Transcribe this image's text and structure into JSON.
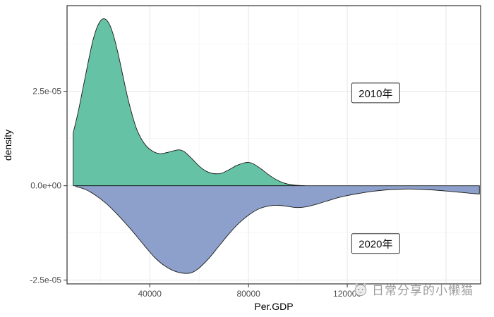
{
  "chart_data": {
    "type": "area",
    "title": "",
    "xlabel": "Per.GDP",
    "ylabel": "density",
    "xlim": [
      6500,
      174000
    ],
    "ylim": [
      -2.6e-05,
      4.77e-05
    ],
    "grid": {
      "major_color": "#e7e7e7",
      "minor_color": "#f3f3f3",
      "panel_border": "#333333"
    },
    "x_ticks": [
      {
        "value": 40000,
        "label": "40000"
      },
      {
        "value": 80000,
        "label": "80000"
      },
      {
        "value": 120000,
        "label": "120000"
      }
    ],
    "x_grid_extra": [
      160000
    ],
    "x_minor": [
      20000,
      60000,
      100000,
      140000
    ],
    "y_ticks": [
      {
        "value": 2.5e-05,
        "label": "2.5e-05"
      },
      {
        "value": 0,
        "label": "0.0e+00"
      },
      {
        "value": -2.5e-05,
        "label": "-2.5e-05"
      }
    ],
    "y_minor": [
      -1.25e-05,
      1.25e-05,
      3.75e-05
    ],
    "series": [
      {
        "name": "2010年",
        "color": "#66C2A5",
        "outline": "#1a1a1a",
        "points": [
          [
            9000,
            1.4e-05
          ],
          [
            11000,
            1.95e-05
          ],
          [
            13000,
            2.6e-05
          ],
          [
            15000,
            3.25e-05
          ],
          [
            17000,
            3.85e-05
          ],
          [
            19000,
            4.25e-05
          ],
          [
            21000,
            4.42e-05
          ],
          [
            23000,
            4.35e-05
          ],
          [
            25000,
            4.05e-05
          ],
          [
            27000,
            3.55e-05
          ],
          [
            29000,
            2.95e-05
          ],
          [
            31000,
            2.35e-05
          ],
          [
            33000,
            1.85e-05
          ],
          [
            35000,
            1.45e-05
          ],
          [
            38000,
            1.1e-05
          ],
          [
            41000,
            9.2e-06
          ],
          [
            44000,
            8.5e-06
          ],
          [
            47000,
            8.8e-06
          ],
          [
            50000,
            9.3e-06
          ],
          [
            52000,
            9.5e-06
          ],
          [
            54000,
            9e-06
          ],
          [
            57000,
            7.2e-06
          ],
          [
            60000,
            5.2e-06
          ],
          [
            63000,
            3.8e-06
          ],
          [
            66000,
            3.2e-06
          ],
          [
            69000,
            3.3e-06
          ],
          [
            72000,
            4.2e-06
          ],
          [
            75000,
            5.3e-06
          ],
          [
            78000,
            6e-06
          ],
          [
            80000,
            6.2e-06
          ],
          [
            82000,
            5.8e-06
          ],
          [
            85000,
            4.5e-06
          ],
          [
            88000,
            3e-06
          ],
          [
            91000,
            1.7e-06
          ],
          [
            94000,
            8e-07
          ],
          [
            97000,
            3e-07
          ],
          [
            100000,
            1e-07
          ],
          [
            103000,
            0
          ]
        ]
      },
      {
        "name": "2020年",
        "color": "#8DA0CB",
        "outline": "#1a1a1a",
        "points": [
          [
            10000,
            -2e-07
          ],
          [
            14000,
            -1e-06
          ],
          [
            18000,
            -2.5e-06
          ],
          [
            22000,
            -4.5e-06
          ],
          [
            26000,
            -7e-06
          ],
          [
            30000,
            -9.8e-06
          ],
          [
            34000,
            -1.28e-05
          ],
          [
            38000,
            -1.6e-05
          ],
          [
            42000,
            -1.9e-05
          ],
          [
            46000,
            -2.12e-05
          ],
          [
            50000,
            -2.26e-05
          ],
          [
            54000,
            -2.32e-05
          ],
          [
            57000,
            -2.3e-05
          ],
          [
            60000,
            -2.18e-05
          ],
          [
            64000,
            -1.92e-05
          ],
          [
            68000,
            -1.6e-05
          ],
          [
            72000,
            -1.28e-05
          ],
          [
            76000,
            -1e-05
          ],
          [
            80000,
            -7.8e-06
          ],
          [
            84000,
            -6.2e-06
          ],
          [
            88000,
            -5.4e-06
          ],
          [
            92000,
            -5.2e-06
          ],
          [
            96000,
            -5.5e-06
          ],
          [
            100000,
            -5.8e-06
          ],
          [
            104000,
            -5.5e-06
          ],
          [
            108000,
            -4.8e-06
          ],
          [
            112000,
            -4e-06
          ],
          [
            116000,
            -3.2e-06
          ],
          [
            120000,
            -2.6e-06
          ],
          [
            125000,
            -2e-06
          ],
          [
            130000,
            -1.5e-06
          ],
          [
            136000,
            -1.1e-06
          ],
          [
            142000,
            -9e-07
          ],
          [
            148000,
            -9e-07
          ],
          [
            154000,
            -1.1e-06
          ],
          [
            160000,
            -1.4e-06
          ],
          [
            165000,
            -1.7e-06
          ],
          [
            170000,
            -2e-06
          ],
          [
            173500,
            -2.2e-06
          ]
        ]
      }
    ],
    "annotations": [
      {
        "label": "2010年",
        "x": 131500,
        "y": 2.45e-05
      },
      {
        "label": "2020年",
        "x": 131500,
        "y": -1.54e-05
      }
    ]
  },
  "watermark": {
    "text": "日常分享的小懒猫",
    "icon": "cat-face-icon",
    "color": "#9b9b9b"
  }
}
